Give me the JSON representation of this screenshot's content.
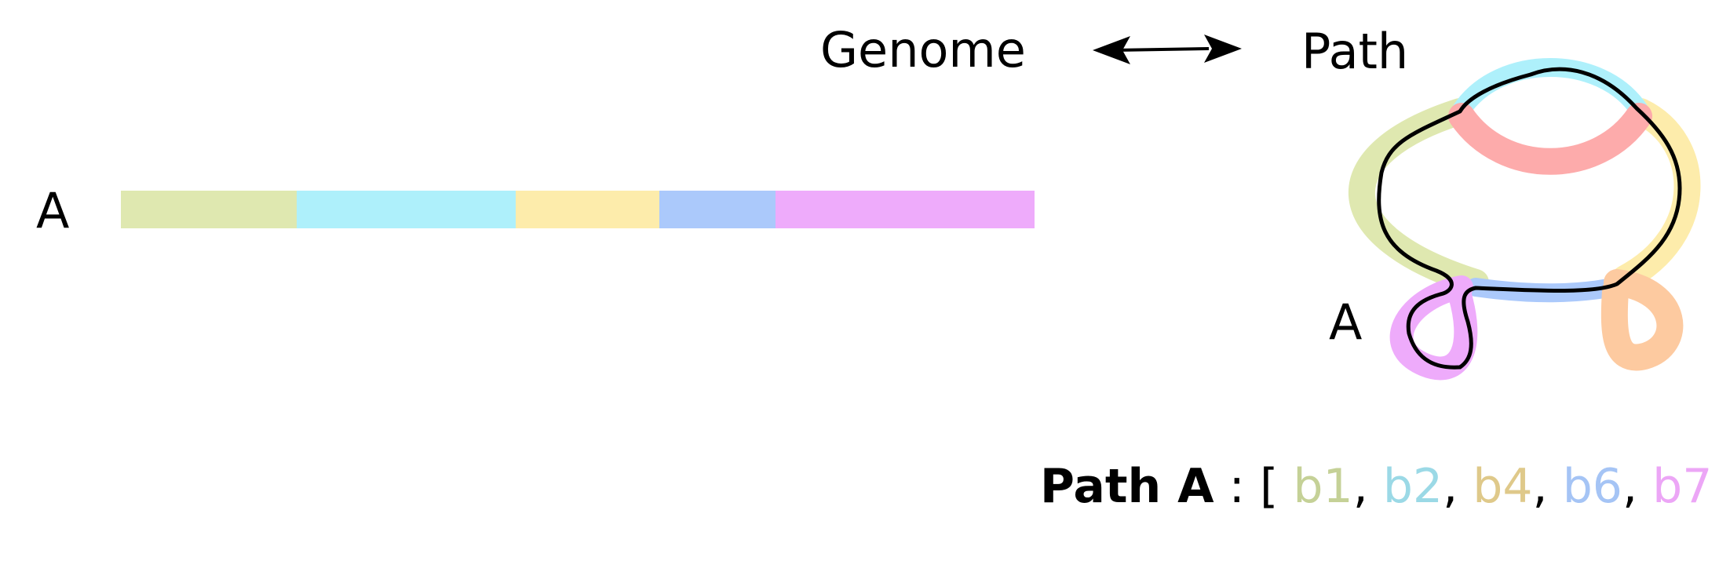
{
  "header": {
    "genome_label": "Genome",
    "path_label": "Path"
  },
  "genome": {
    "sequence_label": "A",
    "segments": [
      {
        "id": "b1",
        "color": "#dfe8b0"
      },
      {
        "id": "b2",
        "color": "#aef0fb"
      },
      {
        "id": "b4",
        "color": "#fdecab"
      },
      {
        "id": "b6",
        "color": "#abc9fb"
      },
      {
        "id": "b7",
        "color": "#eeabfb"
      }
    ]
  },
  "graph": {
    "path_label": "A",
    "node_colors": {
      "green": "#dfe8b0",
      "cyan": "#aef0fb",
      "red": "#fdabab",
      "yellow": "#fdecab",
      "blue": "#abc9fb",
      "magenta": "#eeabfb",
      "orange": "#fdcaa0"
    }
  },
  "formula": {
    "prefix": "Path A",
    "colon": " : ",
    "open_bracket": "[ ",
    "close_bracket": " ]",
    "separator": ", ",
    "items": [
      {
        "text": "b1",
        "color": "#c5d197"
      },
      {
        "text": "b2",
        "color": "#9bd9e6"
      },
      {
        "text": "b4",
        "color": "#dfc98a"
      },
      {
        "text": "b6",
        "color": "#a5c4f5"
      },
      {
        "text": "b7",
        "color": "#eca6f6"
      }
    ]
  }
}
